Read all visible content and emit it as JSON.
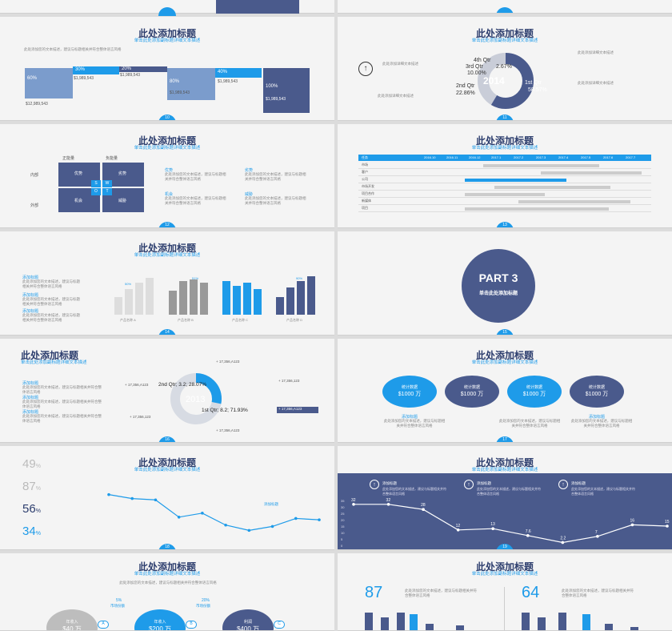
{
  "common": {
    "title": "此处添加标题",
    "subtitle": "单击此处添加副标题详细文本描述",
    "body_text": "此处添加您的文本描述，建议与标题相关并符合整体语言风格",
    "small_text": "此处添加详细文本描述"
  },
  "slides": [
    {
      "num": "10"
    },
    {
      "num": "11"
    },
    {
      "num": "12"
    },
    {
      "num": "13"
    },
    {
      "num": "14"
    },
    {
      "num": "15"
    },
    {
      "num": "16"
    },
    {
      "num": "17"
    },
    {
      "num": "18"
    },
    {
      "num": "19"
    }
  ],
  "waterfall": {
    "steps": [
      {
        "pct": "60%",
        "value": "$12,989,543"
      },
      {
        "pct": "30%",
        "value": "$1,989,543"
      },
      {
        "pct": "20%",
        "value": "$1,989,543"
      },
      {
        "pct": "80%",
        "value": "$1,989,543"
      },
      {
        "pct": "40%",
        "value": "$1,989,543"
      },
      {
        "pct": "100%",
        "value": "$1,989,543"
      }
    ]
  },
  "donut2014": {
    "year": "2014",
    "labels": [
      "4th Qtr",
      "3rd Qtr",
      "2nd Qtr",
      "1st Qtr"
    ],
    "values": [
      "2.67%",
      "10.00%",
      "22.86%",
      "58.57%"
    ],
    "arrow": "↑"
  },
  "swot": {
    "col_labels": [
      "正能量",
      "负能量"
    ],
    "row_labels": [
      "内部",
      "外部"
    ],
    "cells": [
      "优势",
      "劣势",
      "机会",
      "威胁"
    ],
    "letters": [
      "S",
      "W",
      "O",
      "T"
    ],
    "items": [
      "优势",
      "劣势",
      "机会",
      "威胁"
    ]
  },
  "gantt": {
    "headers": [
      "任务",
      "2016.10",
      "2016.11",
      "2016.12",
      "2017.1",
      "2017.2",
      "2017.3",
      "2017.4",
      "2017.5",
      "2017.6",
      "2017.7"
    ],
    "rows": [
      "市场",
      "客户",
      "公司",
      "市场开发",
      "项目合作",
      "新媒体",
      "项目"
    ]
  },
  "bars": {
    "groups": [
      {
        "label": "产品名称 A",
        "pct": "50%"
      },
      {
        "label": "产品名称 B",
        "pct": "51%"
      },
      {
        "label": "产品名称 C",
        "pct": ""
      },
      {
        "label": "产品名称 D",
        "pct": "90%"
      }
    ],
    "side_items": [
      "添加标题",
      "添加标题",
      "添加标题"
    ]
  },
  "part3": {
    "title": "PART 3",
    "subtitle": "单击此处添加标题"
  },
  "donut2013": {
    "year": "2013",
    "labels": [
      "2nd Qtr; 3.2; 28.07%",
      "1st Qtr; 8.2; 71.93%"
    ],
    "callouts": [
      "+ 17,356,A123",
      "+ 17,356,A123",
      "+ 17,356,123",
      "+ 17,356,123",
      "+ 17,356,A123",
      "+ 17,356,A123"
    ],
    "side_items": [
      "添加标题",
      "添加标题",
      "添加标题"
    ]
  },
  "circles": {
    "items": [
      {
        "label": "统计数据",
        "value": "$1000 万"
      },
      {
        "label": "统计数据",
        "value": "$1000 万"
      },
      {
        "label": "统计数据",
        "value": "$1000 万"
      },
      {
        "label": "统计数据",
        "value": "$1000 万"
      }
    ],
    "captions": [
      "添加标题",
      "添加标题"
    ]
  },
  "line1": {
    "stats": [
      {
        "num": "49",
        "unit": "%"
      },
      {
        "num": "87",
        "unit": "%"
      },
      {
        "num": "56",
        "unit": "%"
      },
      {
        "num": "34",
        "unit": "%"
      }
    ],
    "legend": "添加标题",
    "values": [
      31,
      28,
      27,
      14,
      17,
      8,
      4,
      7,
      13,
      12
    ]
  },
  "line2": {
    "values": [
      32,
      32,
      28,
      12,
      13,
      7.6,
      2.2,
      7,
      16,
      15
    ],
    "labels": [
      "32",
      "32",
      "28",
      "12",
      "13",
      "7.6",
      "2.2",
      "7",
      "16",
      "15"
    ],
    "axis": [
      "35",
      "30",
      "25",
      "20",
      "15",
      "10",
      "5",
      "0"
    ],
    "items": [
      "添加标题",
      "添加标题",
      "添加标题"
    ]
  },
  "flow": {
    "items": [
      {
        "label": "年收入",
        "value": "$40 万",
        "letter": "A"
      },
      {
        "label": "年收入",
        "value": "$200 万",
        "letter": "B"
      },
      {
        "label": "利润",
        "value": "$400 万",
        "letter": "C"
      }
    ],
    "pcts": [
      "5%",
      "20%"
    ],
    "tags": [
      "市场份额",
      "市场份额"
    ]
  },
  "kpi": {
    "left": "87",
    "right": "64"
  }
}
